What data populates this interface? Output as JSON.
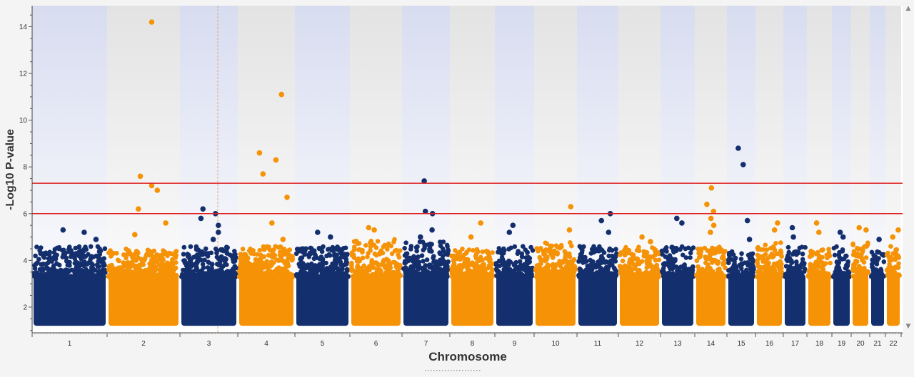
{
  "chart_data": {
    "type": "scatter",
    "subtype": "manhattan",
    "title": "",
    "xlabel": "Chromosome",
    "ylabel": "-Log10 P-value",
    "ylim": [
      0.9,
      14.9
    ],
    "yticks": [
      2,
      4,
      6,
      8,
      10,
      12,
      14
    ],
    "grid": false,
    "background": "alternating shaded bands per chromosome",
    "thresholds": [
      {
        "y": 7.3,
        "color": "#e02020"
      },
      {
        "y": 6.0,
        "color": "#e02020"
      }
    ],
    "series_colors": {
      "odd": "#142f6e",
      "even": "#f59206"
    },
    "chromosomes": [
      {
        "label": "1",
        "base_max": 4.6,
        "peaks": [
          5.3,
          5.2,
          4.9
        ]
      },
      {
        "label": "2",
        "base_max": 4.5,
        "peaks": [
          14.2,
          7.6,
          7.2,
          7.0,
          6.2,
          5.6,
          5.1
        ]
      },
      {
        "label": "3",
        "base_max": 4.6,
        "peaks": [
          6.2,
          6.0,
          5.8,
          5.5,
          5.2,
          4.9
        ]
      },
      {
        "label": "4",
        "base_max": 4.6,
        "peaks": [
          11.1,
          8.6,
          8.3,
          7.7,
          6.7,
          5.6,
          4.9
        ]
      },
      {
        "label": "5",
        "base_max": 4.6,
        "peaks": [
          5.2,
          5.0
        ]
      },
      {
        "label": "6",
        "base_max": 4.9,
        "peaks": [
          5.4,
          5.3
        ]
      },
      {
        "label": "7",
        "base_max": 4.8,
        "peaks": [
          7.4,
          6.1,
          6.0,
          5.3,
          5.0
        ]
      },
      {
        "label": "8",
        "base_max": 4.5,
        "peaks": [
          5.6,
          5.0
        ]
      },
      {
        "label": "9",
        "base_max": 4.6,
        "peaks": [
          5.5,
          5.2
        ]
      },
      {
        "label": "10",
        "base_max": 4.8,
        "peaks": [
          6.3,
          5.3
        ]
      },
      {
        "label": "11",
        "base_max": 4.6,
        "peaks": [
          6.0,
          5.7,
          5.2
        ]
      },
      {
        "label": "12",
        "base_max": 4.6,
        "peaks": [
          5.0,
          4.8
        ]
      },
      {
        "label": "13",
        "base_max": 4.6,
        "peaks": [
          5.8,
          5.6
        ]
      },
      {
        "label": "14",
        "base_max": 4.6,
        "peaks": [
          7.1,
          6.4,
          6.1,
          5.8,
          5.5,
          5.2
        ]
      },
      {
        "label": "15",
        "base_max": 4.4,
        "peaks": [
          8.8,
          8.1,
          5.7,
          4.9
        ]
      },
      {
        "label": "16",
        "base_max": 4.8,
        "peaks": [
          5.6,
          5.3
        ]
      },
      {
        "label": "17",
        "base_max": 4.6,
        "peaks": [
          5.4,
          5.0
        ]
      },
      {
        "label": "18",
        "base_max": 4.6,
        "peaks": [
          5.6,
          5.2
        ]
      },
      {
        "label": "19",
        "base_max": 4.6,
        "peaks": [
          5.2,
          5.0
        ]
      },
      {
        "label": "20",
        "base_max": 4.8,
        "peaks": [
          5.4,
          5.3
        ]
      },
      {
        "label": "21",
        "base_max": 4.4,
        "peaks": [
          4.9
        ]
      },
      {
        "label": "22",
        "base_max": 4.6,
        "peaks": [
          5.3,
          5.0
        ]
      }
    ]
  }
}
